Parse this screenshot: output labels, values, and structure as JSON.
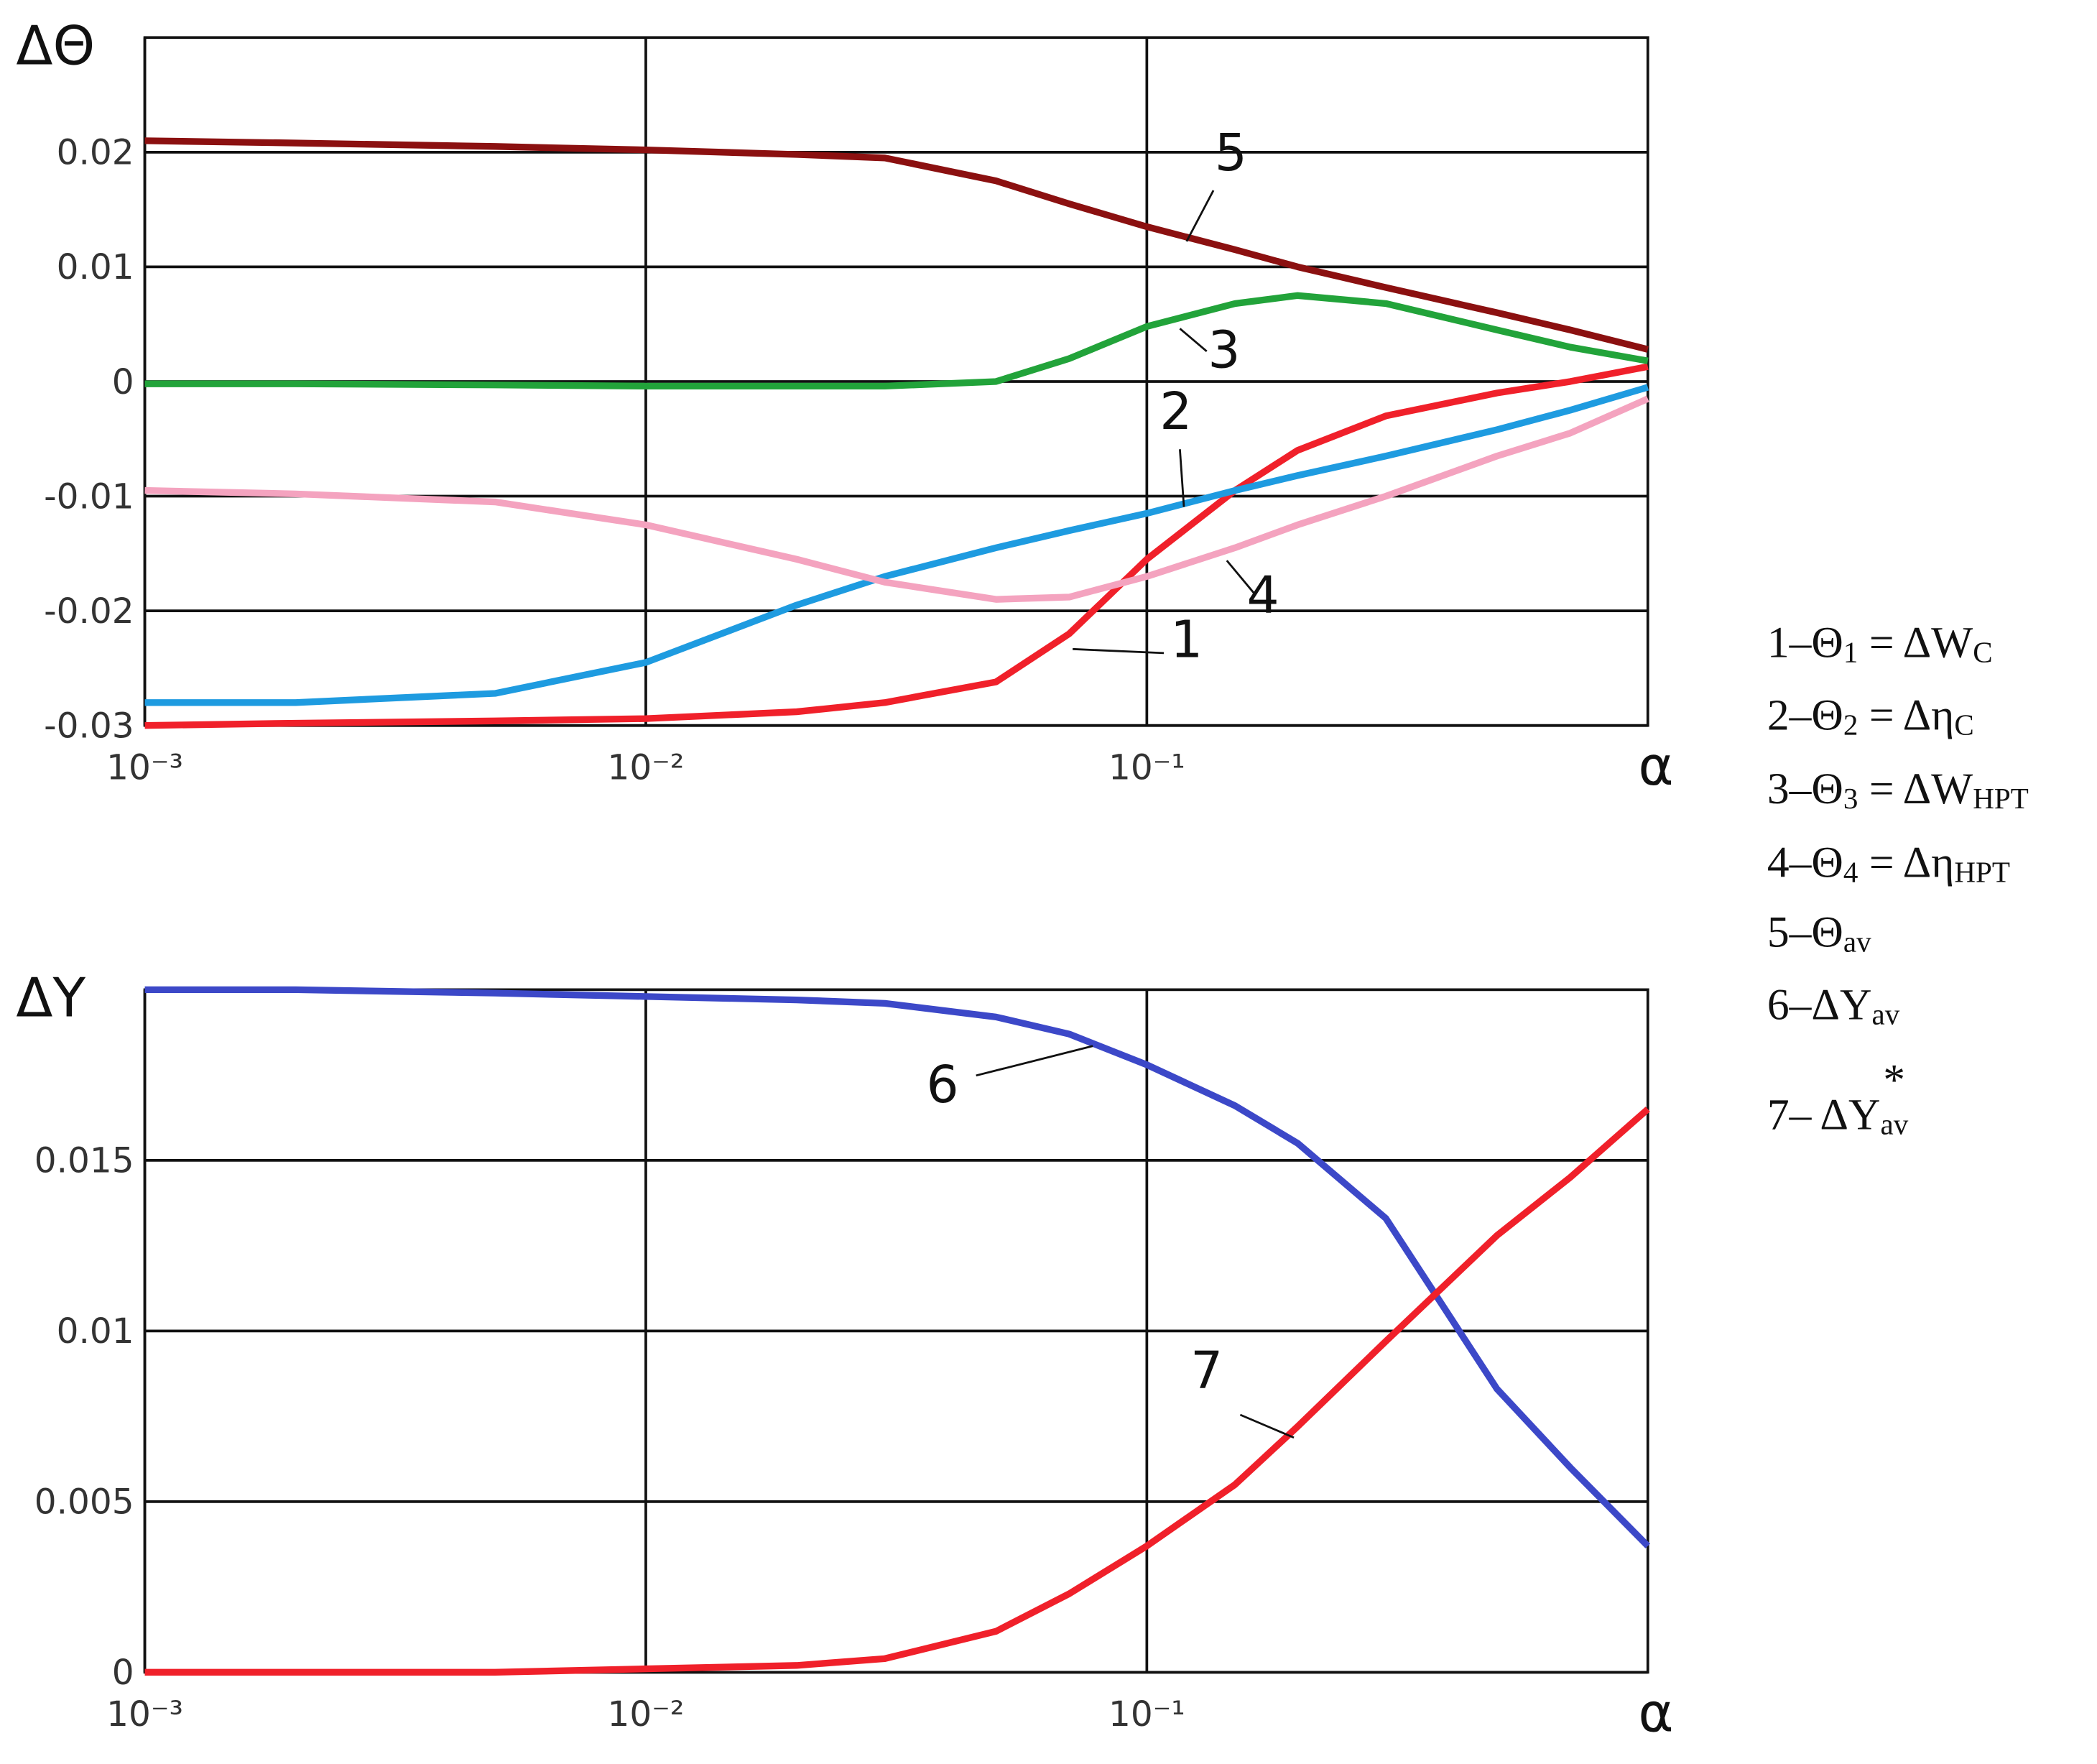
{
  "chart_data": [
    {
      "type": "line",
      "ylabel": "ΔΘ",
      "xlabel": "α",
      "xscale": "log",
      "grid": true,
      "xlim": [
        0.001,
        1
      ],
      "ylim": [
        -0.03,
        0.03
      ],
      "xticks": [
        {
          "value": 0.001,
          "label": "10⁻³"
        },
        {
          "value": 0.01,
          "label": "10⁻²"
        },
        {
          "value": 0.1,
          "label": "10⁻¹"
        }
      ],
      "yticks": [
        -0.03,
        -0.02,
        -0.01,
        0,
        0.01,
        0.02
      ],
      "x": [
        0.001,
        0.002,
        0.005,
        0.01,
        0.02,
        0.03,
        0.05,
        0.07,
        0.1,
        0.15,
        0.2,
        0.3,
        0.5,
        0.7,
        1
      ],
      "series": [
        {
          "name": "1",
          "color": "#f0202a",
          "values": [
            -0.03,
            -0.0298,
            -0.0296,
            -0.0294,
            -0.0288,
            -0.028,
            -0.0262,
            -0.022,
            -0.0155,
            -0.0095,
            -0.006,
            -0.003,
            -0.001,
            0,
            0.0013
          ]
        },
        {
          "name": "2",
          "color": "#1e9be0",
          "values": [
            -0.028,
            -0.028,
            -0.0272,
            -0.0245,
            -0.0195,
            -0.017,
            -0.0145,
            -0.013,
            -0.0115,
            -0.0095,
            -0.0082,
            -0.0065,
            -0.0042,
            -0.0025,
            -0.0005
          ]
        },
        {
          "name": "3",
          "color": "#22a33a",
          "values": [
            -0.0002,
            -0.0002,
            -0.0003,
            -0.0004,
            -0.0004,
            -0.0004,
            0,
            0.002,
            0.0048,
            0.0068,
            0.0075,
            0.0068,
            0.0045,
            0.003,
            0.0018
          ]
        },
        {
          "name": "4",
          "color": "#f4a3bf",
          "values": [
            -0.0095,
            -0.0098,
            -0.0105,
            -0.0125,
            -0.0155,
            -0.0175,
            -0.019,
            -0.0188,
            -0.017,
            -0.0145,
            -0.0125,
            -0.01,
            -0.0065,
            -0.0045,
            -0.0015
          ]
        },
        {
          "name": "5",
          "color": "#8b1010",
          "values": [
            0.021,
            0.0208,
            0.0205,
            0.0202,
            0.0198,
            0.0195,
            0.0175,
            0.0155,
            0.0135,
            0.0115,
            0.01,
            0.0082,
            0.006,
            0.0045,
            0.0028
          ]
        }
      ],
      "legend": [
        {
          "text": [
            "1–Θ",
            "1",
            " = ΔW",
            "C"
          ]
        },
        {
          "text": [
            "2–Θ",
            "2",
            " = Δη",
            "C"
          ]
        },
        {
          "text": [
            "3–Θ",
            "3",
            " = ΔW",
            "HPT"
          ]
        },
        {
          "text": [
            "4–Θ",
            "4",
            " = Δη",
            "HPT"
          ]
        },
        {
          "text": [
            "5–Θ",
            "av"
          ]
        },
        {
          "text": [
            "6–ΔY",
            "av"
          ]
        },
        {
          "text": [
            "7– ΔY",
            "av"
          ],
          "sup": "*"
        }
      ]
    },
    {
      "type": "line",
      "ylabel": "ΔY",
      "xlabel": "α",
      "xscale": "log",
      "grid": true,
      "xlim": [
        0.001,
        1
      ],
      "ylim": [
        0,
        0.02
      ],
      "xticks": [
        {
          "value": 0.001,
          "label": "10⁻³"
        },
        {
          "value": 0.01,
          "label": "10⁻²"
        },
        {
          "value": 0.1,
          "label": "10⁻¹"
        }
      ],
      "yticks": [
        0,
        0.005,
        0.01,
        0.015
      ],
      "x": [
        0.001,
        0.002,
        0.005,
        0.01,
        0.02,
        0.03,
        0.05,
        0.07,
        0.1,
        0.15,
        0.2,
        0.3,
        0.5,
        0.7,
        1
      ],
      "series": [
        {
          "name": "6",
          "color": "#3c48c8",
          "values": [
            0.02,
            0.02,
            0.0199,
            0.0198,
            0.0197,
            0.0196,
            0.0192,
            0.0187,
            0.0178,
            0.0166,
            0.0155,
            0.0133,
            0.0083,
            0.006,
            0.0037
          ]
        },
        {
          "name": "7",
          "color": "#f0202a",
          "values": [
            0,
            0,
            0,
            0.0001,
            0.0002,
            0.0004,
            0.0012,
            0.0023,
            0.0037,
            0.0055,
            0.0072,
            0.0097,
            0.0128,
            0.0145,
            0.0165
          ]
        }
      ]
    }
  ]
}
